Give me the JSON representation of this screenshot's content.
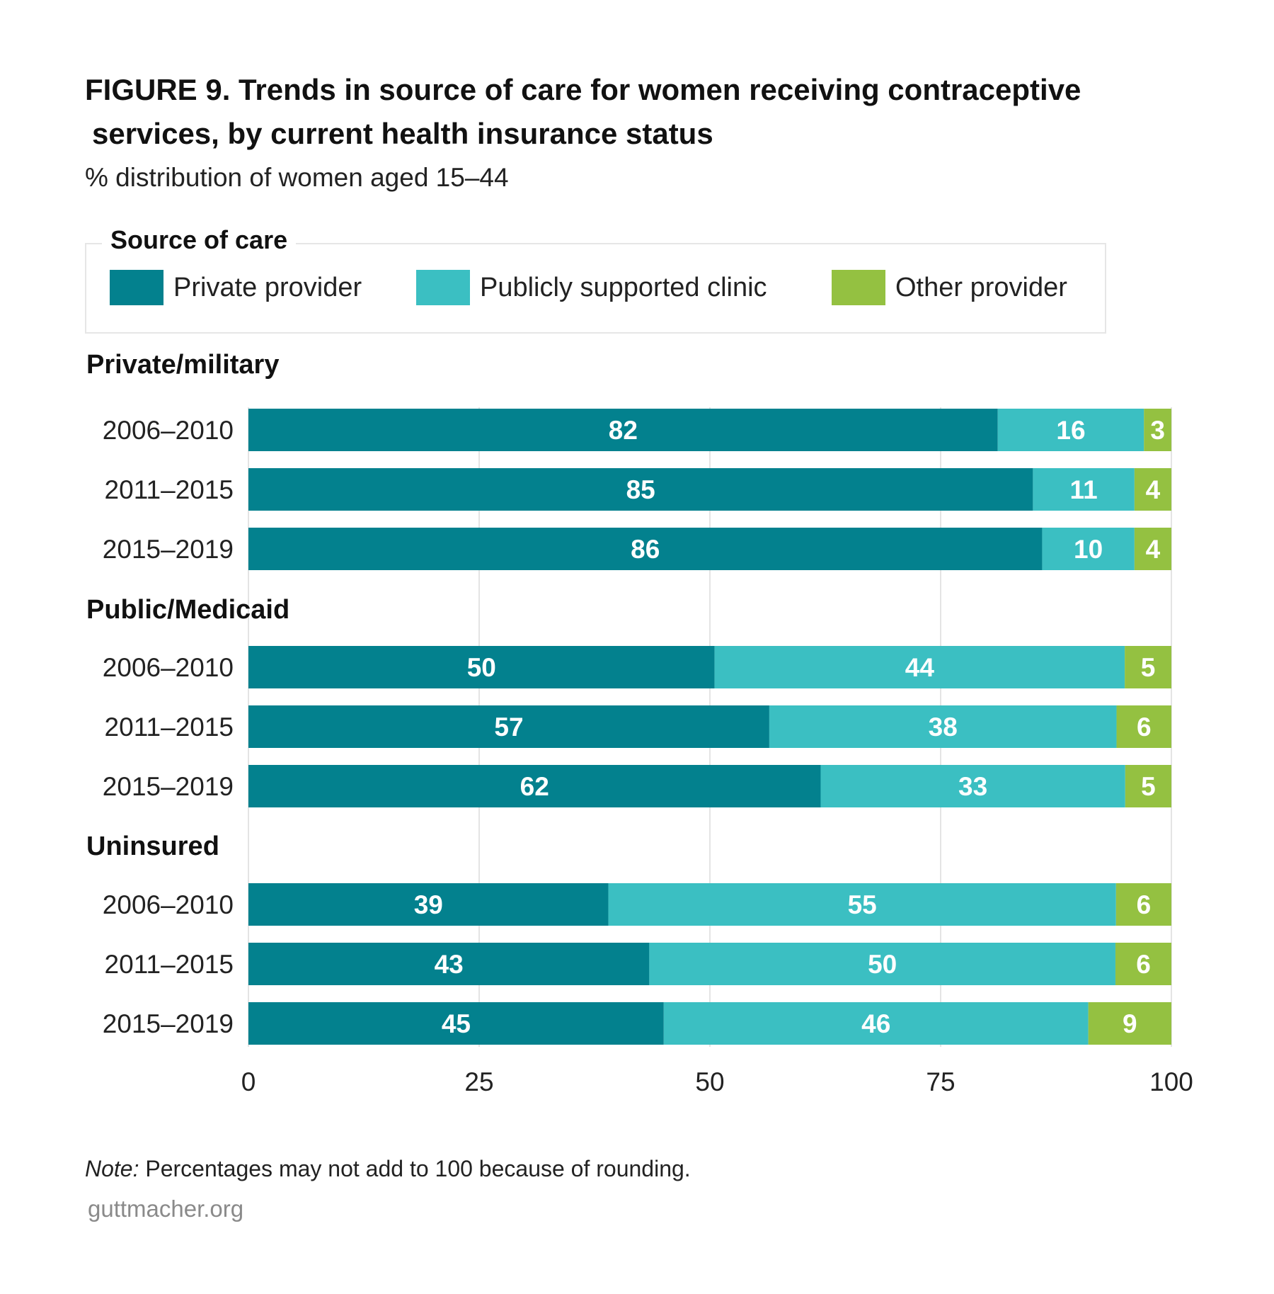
{
  "title_line1": "FIGURE 9. Trends in source of care for women receiving contraceptive",
  "title_line2": "services, by current health insurance status",
  "subtitle": "% distribution of women aged 15–44",
  "legend": {
    "title": "Source of care",
    "items": [
      {
        "label": "Private provider",
        "color": "#03818e"
      },
      {
        "label": "Publicly supported clinic",
        "color": "#3bbfc2"
      },
      {
        "label": "Other provider",
        "color": "#94c141"
      }
    ]
  },
  "note_label": "Note:",
  "note_text": " Percentages may not add to 100 because of rounding.",
  "source": "guttmacher.org",
  "chart_data": {
    "type": "bar",
    "orientation": "horizontal",
    "stacked": true,
    "xlim": [
      0,
      100
    ],
    "xticks": [
      0,
      25,
      50,
      75,
      100
    ],
    "grid": true,
    "series_names": [
      "Private provider",
      "Publicly supported clinic",
      "Other provider"
    ],
    "groups": [
      {
        "name": "Private/military",
        "rows": [
          {
            "label": "2006–2010",
            "values": [
              82,
              16,
              3
            ]
          },
          {
            "label": "2011–2015",
            "values": [
              85,
              11,
              4
            ]
          },
          {
            "label": "2015–2019",
            "values": [
              86,
              10,
              4
            ]
          }
        ]
      },
      {
        "name": "Public/Medicaid",
        "rows": [
          {
            "label": "2006–2010",
            "values": [
              50,
              44,
              5
            ]
          },
          {
            "label": "2011–2015",
            "values": [
              57,
              38,
              6
            ]
          },
          {
            "label": "2015–2019",
            "values": [
              62,
              33,
              5
            ]
          }
        ]
      },
      {
        "name": "Uninsured",
        "rows": [
          {
            "label": "2006–2010",
            "values": [
              39,
              55,
              6
            ]
          },
          {
            "label": "2011–2015",
            "values": [
              43,
              50,
              6
            ]
          },
          {
            "label": "2015–2019",
            "values": [
              45,
              46,
              9
            ]
          }
        ]
      }
    ]
  }
}
